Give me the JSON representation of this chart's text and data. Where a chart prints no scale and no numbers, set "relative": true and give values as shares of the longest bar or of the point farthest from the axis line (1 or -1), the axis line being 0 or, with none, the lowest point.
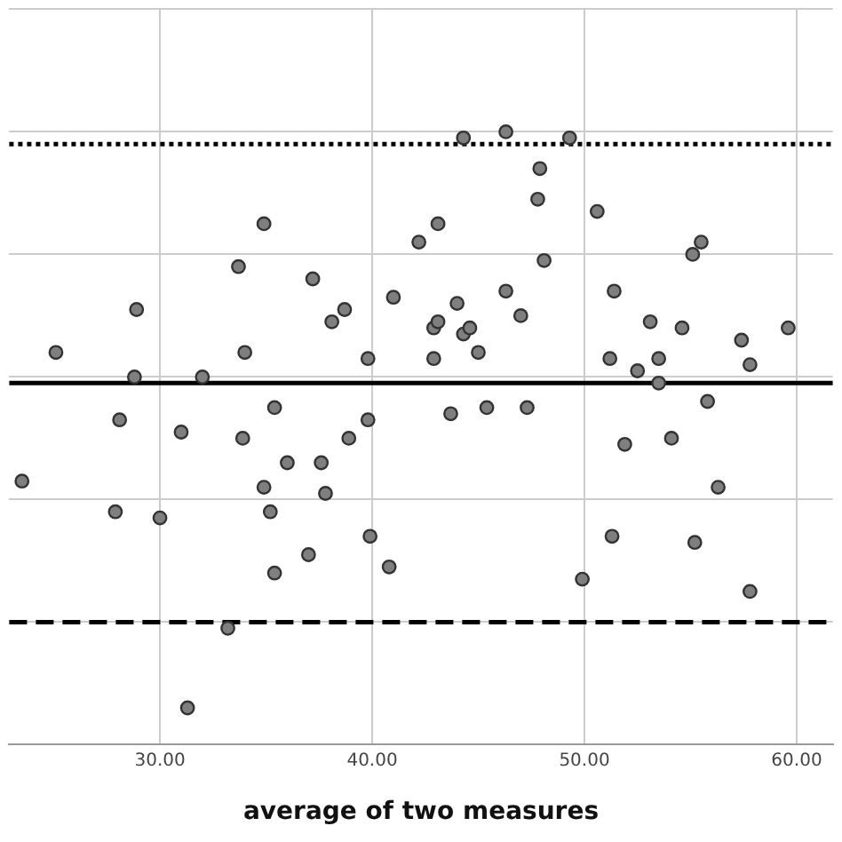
{
  "chart_data": {
    "type": "scatter",
    "xlabel": "average of two measures",
    "relative": true,
    "color": "#7f7f7f",
    "marker": "circle",
    "grid": true,
    "xlim": [
      22.9,
      61.7
    ],
    "xticks": [
      {
        "value": 30,
        "label": "30.00"
      },
      {
        "value": 40,
        "label": "40.00"
      },
      {
        "value": 50,
        "label": "50.00"
      },
      {
        "value": 60,
        "label": "60.00"
      }
    ],
    "x": [
      23.5,
      25.1,
      27.9,
      28.1,
      28.8,
      28.9,
      30.0,
      31.0,
      31.3,
      32.0,
      33.2,
      33.7,
      33.9,
      34.0,
      34.9,
      34.9,
      35.2,
      35.4,
      35.4,
      36.0,
      37.0,
      37.2,
      37.6,
      37.8,
      38.1,
      38.7,
      38.9,
      39.8,
      39.8,
      39.9,
      40.8,
      41.0,
      42.2,
      42.9,
      42.9,
      43.1,
      43.1,
      43.7,
      44.0,
      44.3,
      44.3,
      44.6,
      45.0,
      45.4,
      46.3,
      46.3,
      47.0,
      47.3,
      47.8,
      47.9,
      48.1,
      49.3,
      49.9,
      50.6,
      51.2,
      51.3,
      51.4,
      51.9,
      52.5,
      53.1,
      53.5,
      53.5,
      54.1,
      54.6,
      55.1,
      55.2,
      55.5,
      55.8,
      56.3,
      57.4,
      57.8,
      57.8,
      59.6
    ],
    "values": [
      0.43,
      0.64,
      0.38,
      0.53,
      0.6,
      0.71,
      0.37,
      0.51,
      0.06,
      0.6,
      0.19,
      0.78,
      0.5,
      0.64,
      0.85,
      0.42,
      0.38,
      0.55,
      0.28,
      0.46,
      0.31,
      0.76,
      0.46,
      0.41,
      0.69,
      0.71,
      0.5,
      0.63,
      0.53,
      0.34,
      0.29,
      0.73,
      0.82,
      0.68,
      0.63,
      0.85,
      0.69,
      0.54,
      0.72,
      0.67,
      0.99,
      0.68,
      0.64,
      0.55,
      1.0,
      0.74,
      0.7,
      0.55,
      0.89,
      0.94,
      0.79,
      0.99,
      0.27,
      0.87,
      0.63,
      0.34,
      0.74,
      0.49,
      0.61,
      0.69,
      0.63,
      0.59,
      0.5,
      0.68,
      0.8,
      0.33,
      0.82,
      0.56,
      0.42,
      0.66,
      0.62,
      0.25,
      0.68
    ],
    "ref_lines": [
      {
        "axis": "y",
        "value": 0.98,
        "line_style": "dotted",
        "color": "#000000"
      },
      {
        "axis": "y",
        "value": 0.59,
        "line_style": "solid",
        "color": "#000000"
      },
      {
        "axis": "y",
        "value": 0.2,
        "line_style": "dashed",
        "color": "#000000"
      }
    ]
  }
}
